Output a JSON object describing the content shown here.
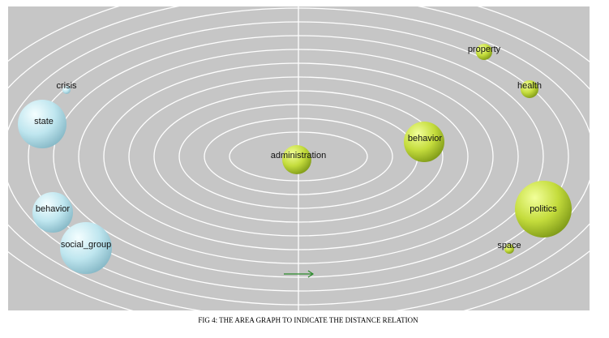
{
  "figure": {
    "nodes": [
      {
        "label": "administration"
      },
      {
        "label": "behavior"
      },
      {
        "label": "property"
      },
      {
        "label": "health"
      },
      {
        "label": "politics"
      },
      {
        "label": "space"
      },
      {
        "label": "crisis"
      },
      {
        "label": "state"
      },
      {
        "label": "behavior"
      },
      {
        "label": "social_group"
      }
    ],
    "caption": "FIG 4: THE AREA GRAPH TO INDICATE THE DISTANCE RELATION"
  }
}
